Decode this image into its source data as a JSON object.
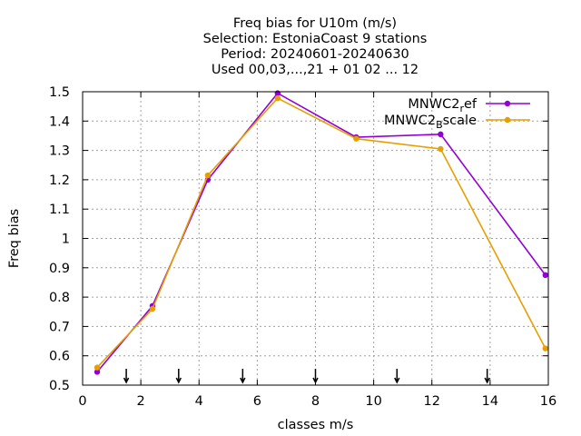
{
  "chart_data": {
    "type": "line",
    "title_lines": [
      "Freq bias  for U10m (m/s)",
      "Selection: EstoniaCoast       9 stations",
      "Period: 20240601-20240630",
      "Used 00,03,...,21 + 01 02 ... 12"
    ],
    "xlabel": "classes m/s",
    "ylabel": "Freq bias",
    "xlim": [
      0,
      16
    ],
    "ylim": [
      0.5,
      1.5
    ],
    "x_ticks": [
      "0",
      "2",
      "4",
      "6",
      "8",
      "10",
      "12",
      "14",
      "16"
    ],
    "y_ticks": [
      "0.5",
      "0.6",
      "0.7",
      "0.8",
      "0.9",
      "1",
      "1.1",
      "1.2",
      "1.3",
      "1.4",
      "1.5"
    ],
    "grid": true,
    "legend_position": "top-right",
    "class_boundary_markers": [
      1.5,
      3.3,
      5.5,
      8.0,
      10.8,
      13.9
    ],
    "series": [
      {
        "name_base": "MNWC2",
        "name_sub": "r",
        "name_rest": "ef",
        "color": "#9400d3",
        "x": [
          0.5,
          2.4,
          4.3,
          6.7,
          9.4,
          12.3,
          15.9
        ],
        "values": [
          0.545,
          0.77,
          1.2,
          1.495,
          1.345,
          1.355,
          0.875
        ]
      },
      {
        "name_base": "MNWC2",
        "name_sub": "B",
        "name_rest": "scale",
        "color": "#e69f00",
        "x": [
          0.5,
          2.4,
          4.3,
          6.7,
          9.4,
          12.3,
          15.9
        ],
        "values": [
          0.56,
          0.76,
          1.215,
          1.478,
          1.34,
          1.305,
          0.625
        ]
      }
    ]
  }
}
